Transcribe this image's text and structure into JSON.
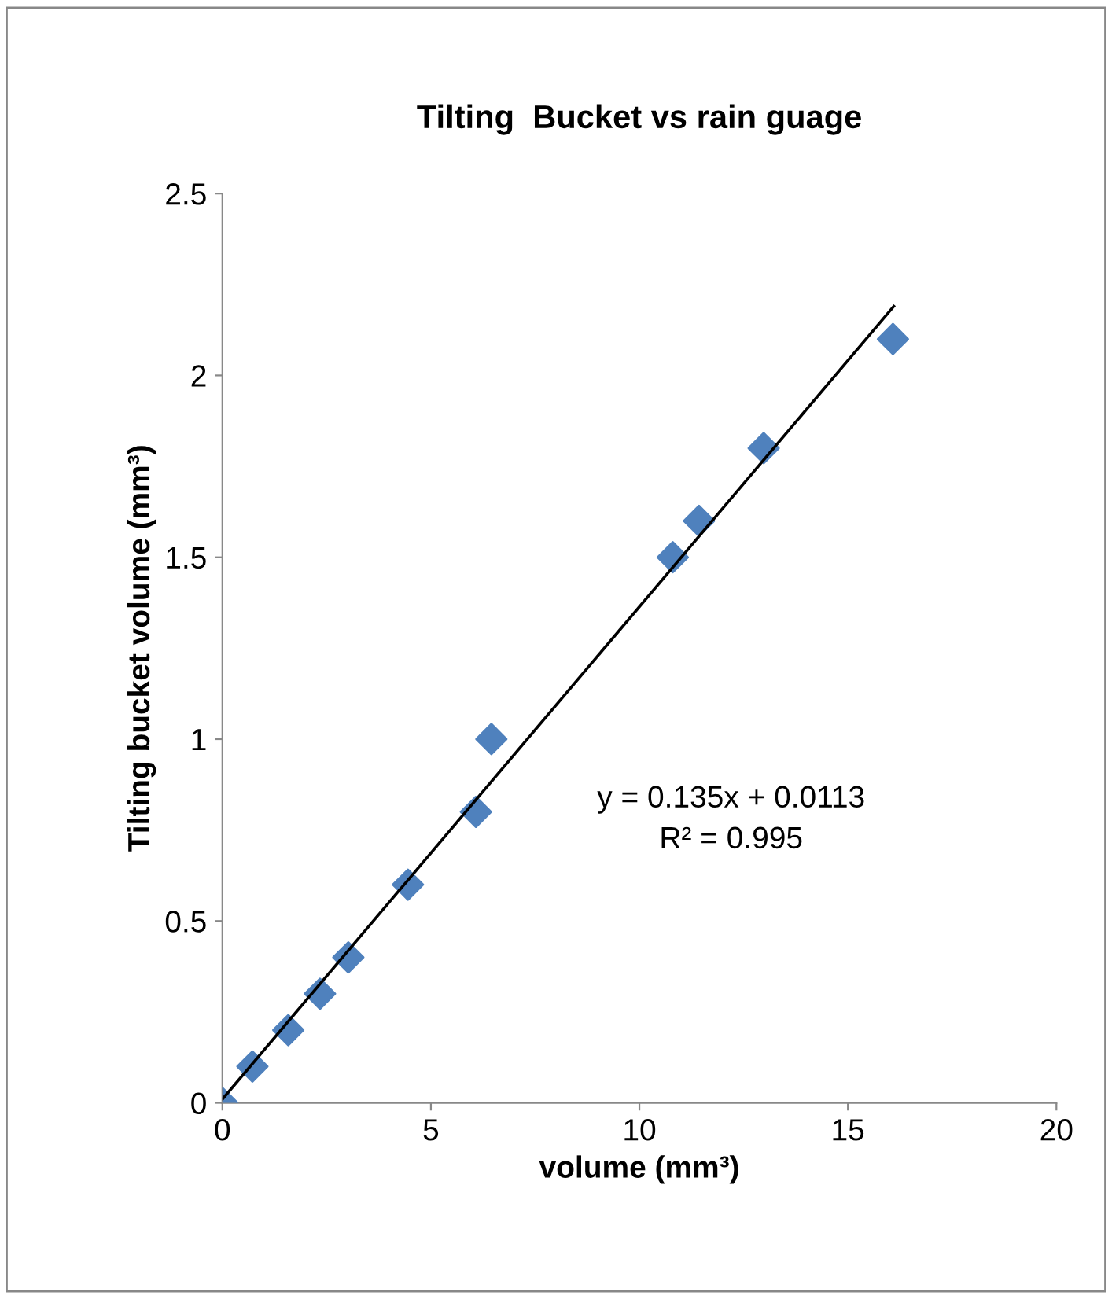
{
  "chart_data": {
    "type": "scatter",
    "title": "Tilting  Bucket vs rain guage",
    "xlabel": "volume (mm³)",
    "ylabel": "Tilting bucket volume (mm³)",
    "x": [
      0,
      0.72,
      1.58,
      2.34,
      3.02,
      4.45,
      6.08,
      6.45,
      10.8,
      11.43,
      12.98,
      16.08
    ],
    "series": [
      {
        "color": "#4f81bd",
        "marker": "diamond",
        "values": [
          0,
          0.1,
          0.2,
          0.3,
          0.4,
          0.6,
          0.8,
          1.0,
          1.5,
          1.6,
          1.8,
          2.1
        ]
      },
      {
        "type": "line",
        "color": "#000000",
        "x": [
          0,
          16.1
        ],
        "values": [
          0.01,
          2.19
        ]
      }
    ],
    "annotations": [
      "y = 0.135x + 0.0113",
      "R² = 0.995"
    ],
    "xlim": [
      0,
      20
    ],
    "ylim": [
      0,
      2.5
    ],
    "xticks": [
      0,
      5,
      10,
      15,
      20
    ],
    "yticks": [
      0,
      0.5,
      1,
      1.5,
      2,
      2.5
    ],
    "grid": false,
    "legend": false
  }
}
